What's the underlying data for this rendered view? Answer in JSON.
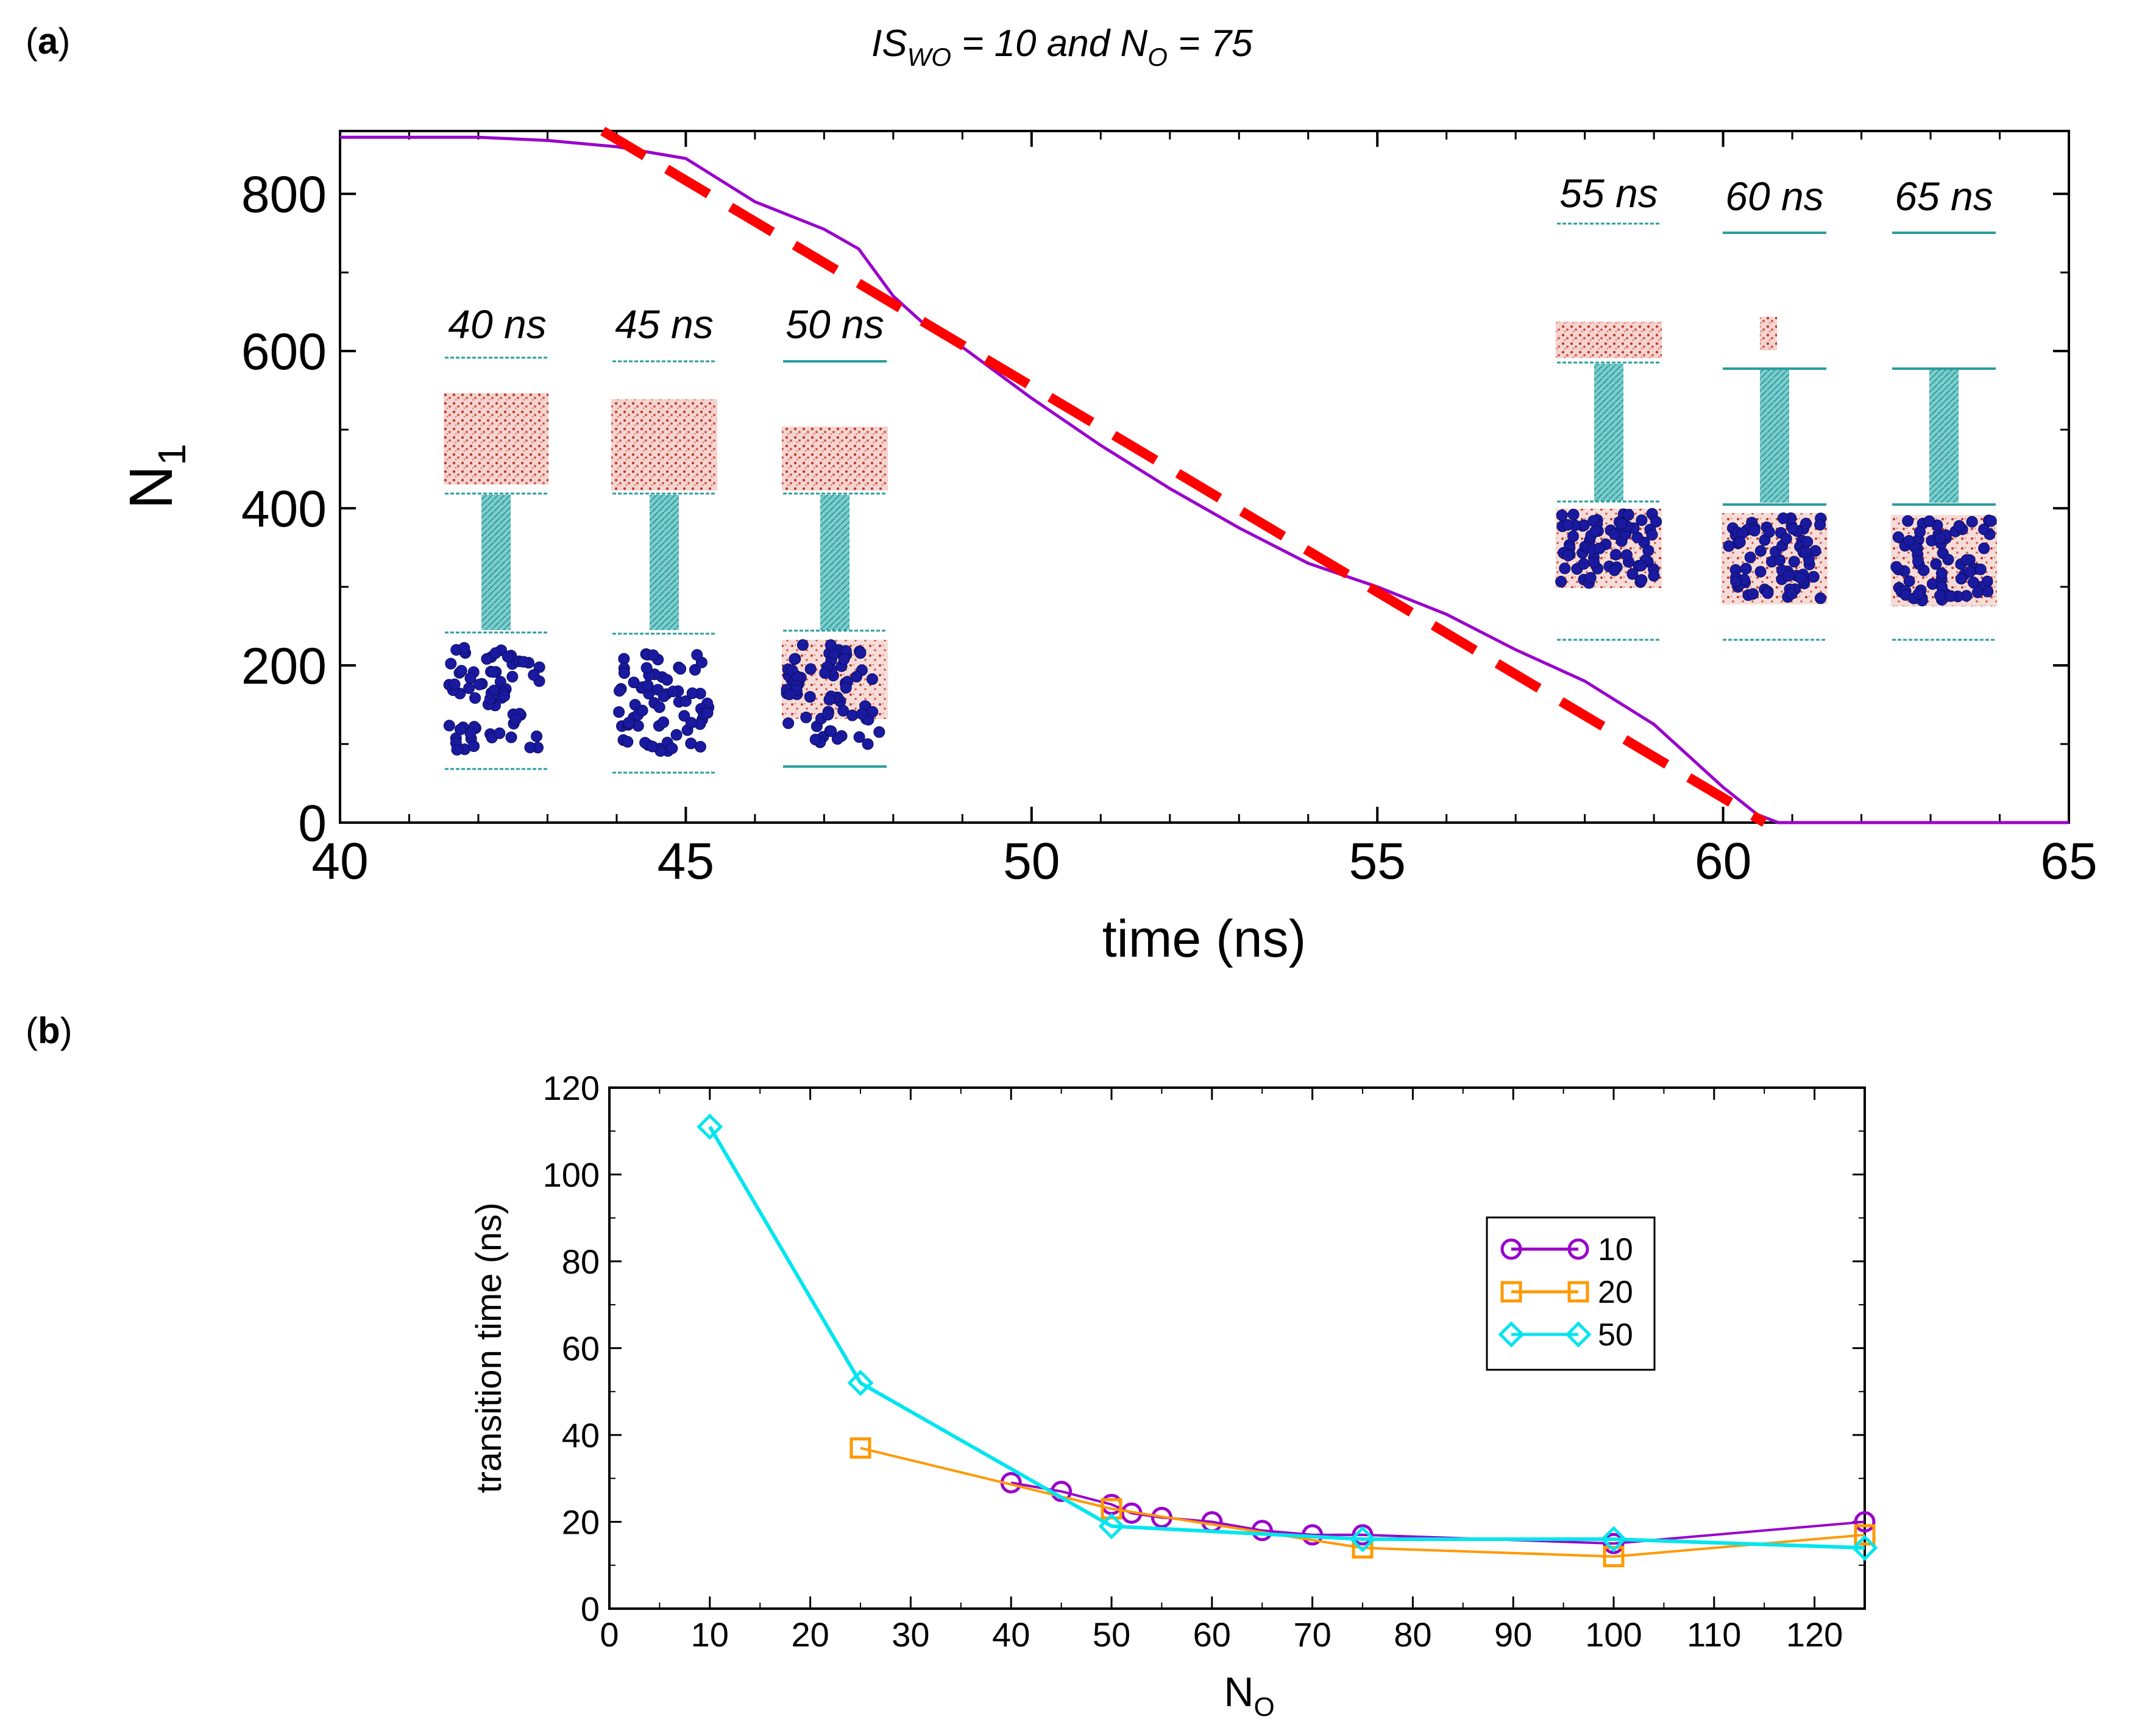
{
  "panel_a": {
    "label_bracket_open": "(",
    "label_letter": "a",
    "label_bracket_close": ")",
    "title_part1": "IS",
    "title_sub1": "WO",
    "title_part2": " = 10 and N",
    "title_sub2": "O",
    "title_part3": " = 75",
    "colors": {
      "n1_line": "#9900cc",
      "fit_line": "#ff0000",
      "pore": "#2a9d9d",
      "oil": "#1a1aa0",
      "water": "#c0392b"
    }
  },
  "panel_b": {
    "label_bracket_open": "(",
    "label_letter": "b",
    "label_bracket_close": ")",
    "colors": {
      "10": "#9900cc",
      "20": "#ff9900",
      "50": "#00e5ee"
    }
  },
  "chart_data": [
    {
      "type": "line",
      "title": "IS_WO = 10 and N_O = 75",
      "xlabel": "time (ns)",
      "ylabel_main": "N",
      "ylabel_sub": "1",
      "xlim": [
        40,
        65
      ],
      "ylim": [
        0,
        880
      ],
      "xticks": [
        40,
        45,
        50,
        55,
        60,
        65
      ],
      "yticks": [
        0,
        200,
        400,
        600,
        800
      ],
      "series": [
        {
          "name": "N1",
          "style": "solid",
          "x": [
            40,
            42,
            43,
            44,
            45,
            46,
            47,
            47.5,
            48,
            48.5,
            49,
            50,
            51,
            52,
            53,
            54,
            55,
            56,
            57,
            58,
            59,
            59.5,
            60,
            60.5,
            60.8,
            61,
            65
          ],
          "y": [
            872,
            872,
            868,
            860,
            845,
            790,
            755,
            730,
            670,
            630,
            605,
            540,
            480,
            425,
            375,
            330,
            300,
            265,
            220,
            180,
            125,
            85,
            45,
            10,
            0,
            0,
            0
          ]
        },
        {
          "name": "linear fit",
          "style": "dashed",
          "x": [
            43.8,
            60.6
          ],
          "y": [
            900,
            0
          ]
        }
      ],
      "annotations": {
        "snapshots": [
          "40 ns",
          "45 ns",
          "50 ns",
          "55 ns",
          "60 ns",
          "65 ns"
        ]
      }
    },
    {
      "type": "line",
      "title": "",
      "xlabel_main": "N",
      "xlabel_sub": "O",
      "ylabel": "transition time (ns)",
      "xlim": [
        0,
        125
      ],
      "ylim": [
        0,
        120
      ],
      "xticks": [
        0,
        10,
        20,
        30,
        40,
        50,
        60,
        70,
        80,
        90,
        100,
        110,
        120
      ],
      "yticks": [
        0,
        20,
        40,
        60,
        80,
        100,
        120
      ],
      "legend_position": "upper-right",
      "series": [
        {
          "name": "10",
          "marker": "circle",
          "x": [
            40,
            45,
            50,
            52,
            55,
            60,
            65,
            70,
            75,
            100,
            125
          ],
          "y": [
            29,
            27,
            24,
            22,
            21,
            20,
            18,
            17,
            17,
            15,
            20
          ]
        },
        {
          "name": "20",
          "marker": "square",
          "x": [
            25,
            50,
            75,
            100,
            125
          ],
          "y": [
            37,
            23,
            14,
            12,
            17
          ]
        },
        {
          "name": "50",
          "marker": "diamond",
          "x": [
            10,
            25,
            50,
            75,
            100,
            125
          ],
          "y": [
            111,
            52,
            19,
            16,
            16,
            14
          ]
        }
      ]
    }
  ]
}
